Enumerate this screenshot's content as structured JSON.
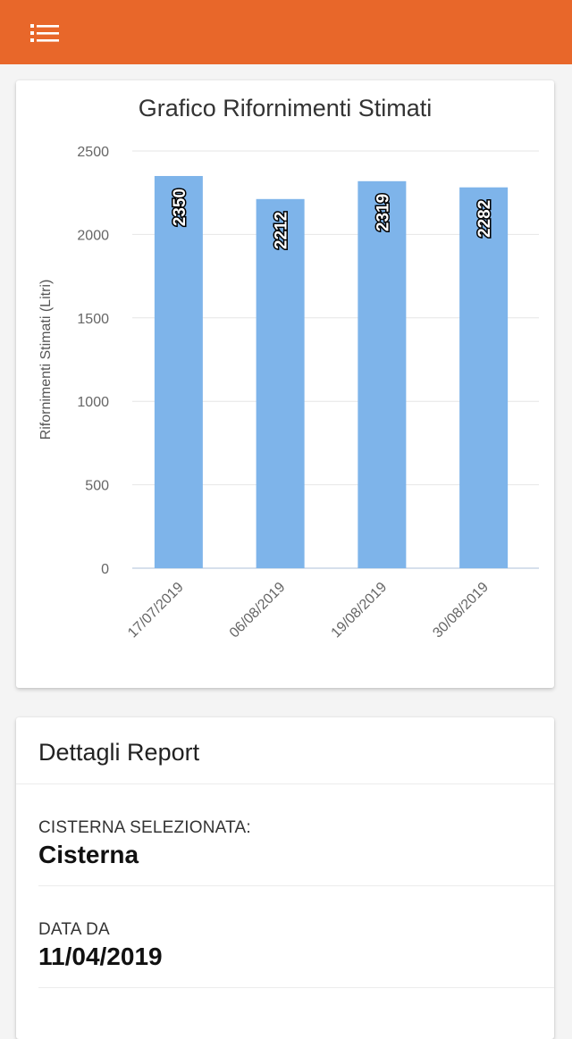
{
  "header": {
    "menu_icon": "list-icon",
    "bg_color": "#e8672a"
  },
  "chart_data": {
    "type": "bar",
    "title": "Grafico Rifornimenti Stimati",
    "ylabel": "Rifornimenti Stimati (Litri)",
    "xlabel": "",
    "categories": [
      "17/07/2019",
      "06/08/2019",
      "19/08/2019",
      "30/08/2019"
    ],
    "values": [
      2350,
      2212,
      2319,
      2282
    ],
    "ylim": [
      0,
      2500
    ],
    "yticks": [
      "0",
      "500",
      "1000",
      "1500",
      "2000",
      "2500"
    ],
    "grid": true,
    "bar_color": "#7eb4ea"
  },
  "report": {
    "title": "Dettagli Report",
    "fields": [
      {
        "label": "CISTERNA SELEZIONATA:",
        "value": "Cisterna"
      },
      {
        "label": "DATA DA",
        "value": "11/04/2019"
      }
    ]
  }
}
